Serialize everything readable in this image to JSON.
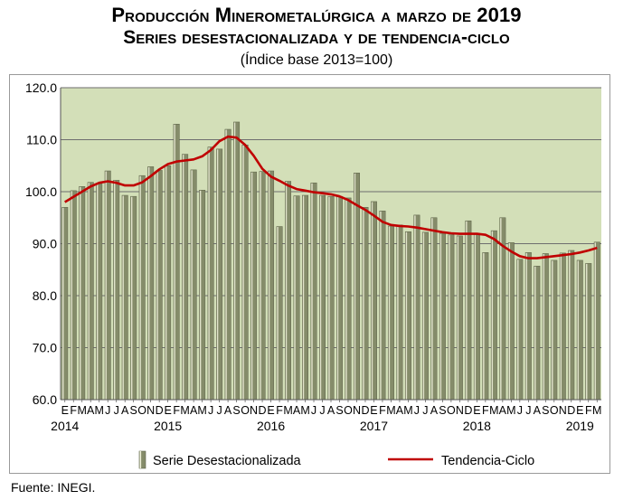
{
  "header": {
    "title": "Producción Minerometalúrgica a marzo de 2019",
    "subtitle": "Series desestacionalizada y de tendencia-ciclo",
    "note": "(Índice base 2013=100)"
  },
  "source": "Fuente: INEGI.",
  "colors": {
    "plot_bg": "#d3dfb8",
    "bar": "#858c6a",
    "bar_highlight": "#f1f2dc",
    "line": "#c00000",
    "grid": "#6e6e6e"
  },
  "chart_data": {
    "type": "bar",
    "title": "Producción Minerometalúrgica a marzo de 2019",
    "subtitle": "Series desestacionalizada y de tendencia-ciclo",
    "ylabel": "(Índice base 2013=100)",
    "xlabel": "",
    "ylim": [
      60,
      120
    ],
    "yticks": [
      "60.0",
      "70.0",
      "80.0",
      "90.0",
      "100.0",
      "110.0",
      "120.0"
    ],
    "grid": true,
    "legend_position": "bottom",
    "month_labels": [
      "E",
      "F",
      "M",
      "A",
      "M",
      "J",
      "J",
      "A",
      "S",
      "O",
      "N",
      "D"
    ],
    "year_labels": [
      "2014",
      "2015",
      "2016",
      "2017",
      "2018",
      "2019"
    ],
    "series": [
      {
        "name": "Serie Desestacionalizada",
        "type": "bar",
        "values": [
          97.0,
          100.2,
          101.0,
          101.8,
          101.5,
          104.0,
          102.2,
          99.3,
          99.1,
          103.1,
          104.8,
          104.1,
          105.0,
          113.0,
          107.2,
          104.2,
          100.3,
          108.6,
          108.2,
          112.0,
          113.4,
          109.0,
          103.8,
          103.9,
          104.0,
          93.3,
          102.0,
          99.2,
          99.3,
          101.7,
          99.3,
          99.1,
          99.1,
          98.8,
          103.6,
          97.0,
          98.1,
          96.3,
          93.4,
          93.6,
          92.3,
          95.5,
          92.2,
          95.0,
          92.0,
          91.7,
          91.5,
          94.4,
          91.8,
          88.3,
          92.5,
          95.0,
          90.2,
          87.0,
          88.3,
          85.7,
          88.1,
          86.8,
          88.2,
          88.7,
          86.8,
          86.2,
          90.3
        ]
      },
      {
        "name": "Tendencia-Ciclo",
        "type": "line",
        "values": [
          98.0,
          99.0,
          100.0,
          101.0,
          101.7,
          102.0,
          101.7,
          101.2,
          101.2,
          101.8,
          103.0,
          104.3,
          105.3,
          105.8,
          106.0,
          106.2,
          106.8,
          108.0,
          109.7,
          110.6,
          110.4,
          109.0,
          106.9,
          104.4,
          102.9,
          102.1,
          101.2,
          100.5,
          100.2,
          99.9,
          99.7,
          99.5,
          99.1,
          98.4,
          97.4,
          96.5,
          95.4,
          94.2,
          93.6,
          93.4,
          93.3,
          93.1,
          92.8,
          92.5,
          92.2,
          92.0,
          91.9,
          91.9,
          91.9,
          91.7,
          90.9,
          89.6,
          88.5,
          87.6,
          87.2,
          87.2,
          87.4,
          87.6,
          87.8,
          88.0,
          88.3,
          88.7,
          89.2
        ]
      }
    ]
  }
}
